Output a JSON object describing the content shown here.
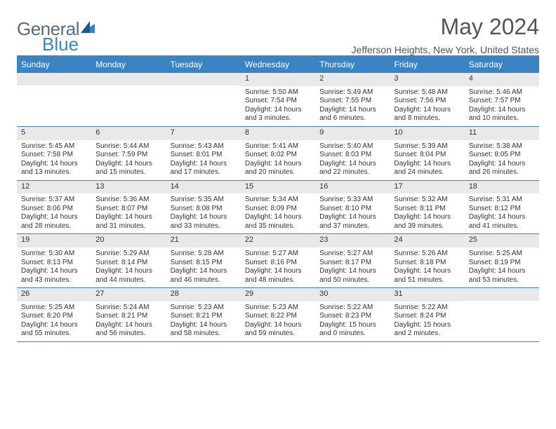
{
  "brand": {
    "name1": "General",
    "name2": "Blue"
  },
  "title": {
    "month": "May 2024",
    "location": "Jefferson Heights, New York, United States"
  },
  "colors": {
    "accent": "#3a84c4",
    "band": "#e9e9e9",
    "text": "#333333",
    "bg": "#ffffff"
  },
  "dayNames": [
    "Sunday",
    "Monday",
    "Tuesday",
    "Wednesday",
    "Thursday",
    "Friday",
    "Saturday"
  ],
  "weeks": [
    [
      null,
      null,
      null,
      {
        "d": "1",
        "sr": "5:50 AM",
        "ss": "7:54 PM",
        "dl": "14 hours and 3 minutes."
      },
      {
        "d": "2",
        "sr": "5:49 AM",
        "ss": "7:55 PM",
        "dl": "14 hours and 6 minutes."
      },
      {
        "d": "3",
        "sr": "5:48 AM",
        "ss": "7:56 PM",
        "dl": "14 hours and 8 minutes."
      },
      {
        "d": "4",
        "sr": "5:46 AM",
        "ss": "7:57 PM",
        "dl": "14 hours and 10 minutes."
      }
    ],
    [
      {
        "d": "5",
        "sr": "5:45 AM",
        "ss": "7:58 PM",
        "dl": "14 hours and 13 minutes."
      },
      {
        "d": "6",
        "sr": "5:44 AM",
        "ss": "7:59 PM",
        "dl": "14 hours and 15 minutes."
      },
      {
        "d": "7",
        "sr": "5:43 AM",
        "ss": "8:01 PM",
        "dl": "14 hours and 17 minutes."
      },
      {
        "d": "8",
        "sr": "5:41 AM",
        "ss": "8:02 PM",
        "dl": "14 hours and 20 minutes."
      },
      {
        "d": "9",
        "sr": "5:40 AM",
        "ss": "8:03 PM",
        "dl": "14 hours and 22 minutes."
      },
      {
        "d": "10",
        "sr": "5:39 AM",
        "ss": "8:04 PM",
        "dl": "14 hours and 24 minutes."
      },
      {
        "d": "11",
        "sr": "5:38 AM",
        "ss": "8:05 PM",
        "dl": "14 hours and 26 minutes."
      }
    ],
    [
      {
        "d": "12",
        "sr": "5:37 AM",
        "ss": "8:06 PM",
        "dl": "14 hours and 28 minutes."
      },
      {
        "d": "13",
        "sr": "5:36 AM",
        "ss": "8:07 PM",
        "dl": "14 hours and 31 minutes."
      },
      {
        "d": "14",
        "sr": "5:35 AM",
        "ss": "8:08 PM",
        "dl": "14 hours and 33 minutes."
      },
      {
        "d": "15",
        "sr": "5:34 AM",
        "ss": "8:09 PM",
        "dl": "14 hours and 35 minutes."
      },
      {
        "d": "16",
        "sr": "5:33 AM",
        "ss": "8:10 PM",
        "dl": "14 hours and 37 minutes."
      },
      {
        "d": "17",
        "sr": "5:32 AM",
        "ss": "8:11 PM",
        "dl": "14 hours and 39 minutes."
      },
      {
        "d": "18",
        "sr": "5:31 AM",
        "ss": "8:12 PM",
        "dl": "14 hours and 41 minutes."
      }
    ],
    [
      {
        "d": "19",
        "sr": "5:30 AM",
        "ss": "8:13 PM",
        "dl": "14 hours and 43 minutes."
      },
      {
        "d": "20",
        "sr": "5:29 AM",
        "ss": "8:14 PM",
        "dl": "14 hours and 44 minutes."
      },
      {
        "d": "21",
        "sr": "5:28 AM",
        "ss": "8:15 PM",
        "dl": "14 hours and 46 minutes."
      },
      {
        "d": "22",
        "sr": "5:27 AM",
        "ss": "8:16 PM",
        "dl": "14 hours and 48 minutes."
      },
      {
        "d": "23",
        "sr": "5:27 AM",
        "ss": "8:17 PM",
        "dl": "14 hours and 50 minutes."
      },
      {
        "d": "24",
        "sr": "5:26 AM",
        "ss": "8:18 PM",
        "dl": "14 hours and 51 minutes."
      },
      {
        "d": "25",
        "sr": "5:25 AM",
        "ss": "8:19 PM",
        "dl": "14 hours and 53 minutes."
      }
    ],
    [
      {
        "d": "26",
        "sr": "5:25 AM",
        "ss": "8:20 PM",
        "dl": "14 hours and 55 minutes."
      },
      {
        "d": "27",
        "sr": "5:24 AM",
        "ss": "8:21 PM",
        "dl": "14 hours and 56 minutes."
      },
      {
        "d": "28",
        "sr": "5:23 AM",
        "ss": "8:21 PM",
        "dl": "14 hours and 58 minutes."
      },
      {
        "d": "29",
        "sr": "5:23 AM",
        "ss": "8:22 PM",
        "dl": "14 hours and 59 minutes."
      },
      {
        "d": "30",
        "sr": "5:22 AM",
        "ss": "8:23 PM",
        "dl": "15 hours and 0 minutes."
      },
      {
        "d": "31",
        "sr": "5:22 AM",
        "ss": "8:24 PM",
        "dl": "15 hours and 2 minutes."
      },
      null
    ]
  ],
  "labels": {
    "sunrise": "Sunrise: ",
    "sunset": "Sunset: ",
    "daylight": "Daylight: "
  }
}
